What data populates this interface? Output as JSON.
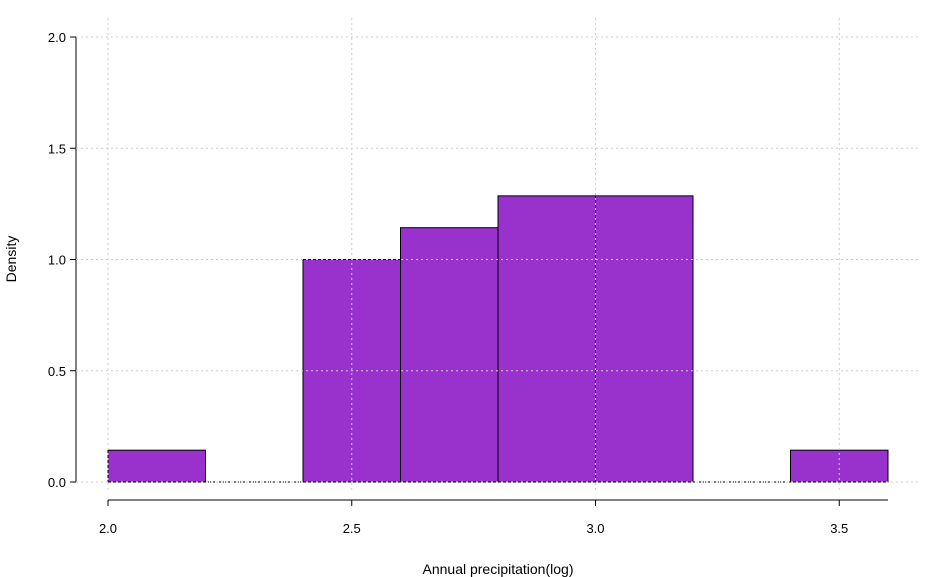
{
  "chart_data": {
    "type": "bar",
    "title": "",
    "xlabel": "Annual precipitation(log)",
    "ylabel": "Density",
    "xlim": [
      2.0,
      3.6
    ],
    "ylim": [
      0.0,
      2.0
    ],
    "x_ticks": [
      2.0,
      2.5,
      3.0,
      3.5
    ],
    "x_tick_labels": [
      "2.0",
      "2.5",
      "3.0",
      "3.5"
    ],
    "y_ticks": [
      0.0,
      0.5,
      1.0,
      1.5,
      2.0
    ],
    "y_tick_labels": [
      "0.0",
      "0.5",
      "1.0",
      "1.5",
      "2.0"
    ],
    "bins": [
      {
        "x0": 2.0,
        "x1": 2.2,
        "density": 0.143
      },
      {
        "x0": 2.2,
        "x1": 2.4,
        "density": 0.0
      },
      {
        "x0": 2.4,
        "x1": 2.6,
        "density": 1.0
      },
      {
        "x0": 2.6,
        "x1": 2.8,
        "density": 1.143
      },
      {
        "x0": 2.8,
        "x1": 3.0,
        "density": 1.286
      },
      {
        "x0": 3.0,
        "x1": 3.2,
        "density": 1.286
      },
      {
        "x0": 3.2,
        "x1": 3.4,
        "density": 0.0
      },
      {
        "x0": 3.4,
        "x1": 3.6,
        "density": 0.143
      }
    ],
    "grid": true,
    "colors": {
      "bar_fill": "#9932CC",
      "bar_stroke": "#000000",
      "grid": "#cccccc"
    }
  }
}
